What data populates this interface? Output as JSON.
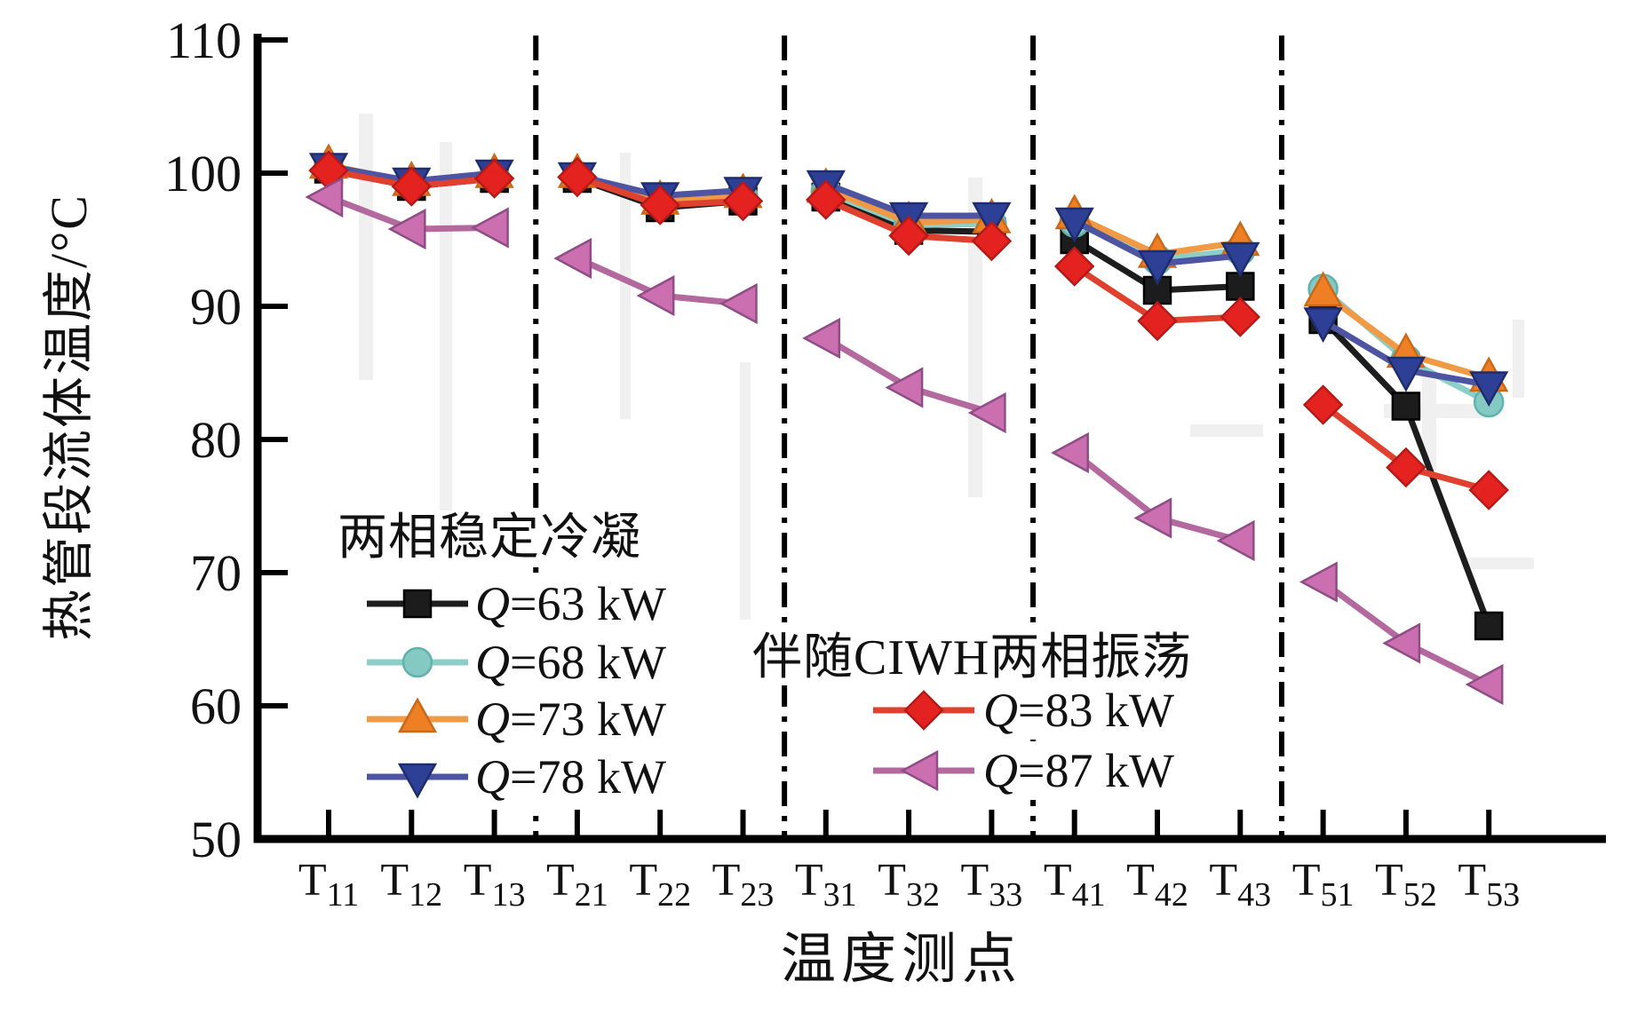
{
  "chart_data": {
    "type": "line",
    "title": "",
    "xlabel": "温度测点",
    "ylabel": "热管段流体温度/°C",
    "ylim": [
      50,
      110
    ],
    "yticks": [
      110,
      100,
      90,
      80,
      70,
      60,
      50
    ],
    "grid": false,
    "categories": [
      {
        "base": "T",
        "sub": "11"
      },
      {
        "base": "T",
        "sub": "12"
      },
      {
        "base": "T",
        "sub": "13"
      },
      {
        "base": "T",
        "sub": "21"
      },
      {
        "base": "T",
        "sub": "22"
      },
      {
        "base": "T",
        "sub": "23"
      },
      {
        "base": "T",
        "sub": "31"
      },
      {
        "base": "T",
        "sub": "32"
      },
      {
        "base": "T",
        "sub": "33"
      },
      {
        "base": "T",
        "sub": "41"
      },
      {
        "base": "T",
        "sub": "42"
      },
      {
        "base": "T",
        "sub": "43"
      },
      {
        "base": "T",
        "sub": "51"
      },
      {
        "base": "T",
        "sub": "52"
      },
      {
        "base": "T",
        "sub": "53"
      }
    ],
    "group_separators_after_index": [
      2,
      5,
      8,
      11
    ],
    "legend_groups": [
      {
        "title": "两相稳定冷凝",
        "series_indexes": [
          0,
          1,
          2,
          3
        ]
      },
      {
        "title": "伴随CIWH两相振荡",
        "series_indexes": [
          4,
          5
        ]
      }
    ],
    "series": [
      {
        "label": "Q=63 kW",
        "marker": "square",
        "color": "#1c1c1c",
        "line_color": "#1d1d1d",
        "edge_color": "#000000",
        "values": [
          100.3,
          99.0,
          99.6,
          99.6,
          97.4,
          97.9,
          98.2,
          95.7,
          95.6,
          95.0,
          91.2,
          91.5,
          89.0,
          82.5,
          66.0
        ]
      },
      {
        "label": "Q=68 kW",
        "marker": "circle",
        "color": "#85c9c3",
        "line_color": "#8ccfc9",
        "edge_color": "#5fb3ad",
        "values": [
          100.4,
          99.2,
          99.8,
          99.8,
          97.8,
          98.2,
          98.6,
          96.1,
          96.2,
          96.3,
          93.5,
          94.2,
          91.3,
          86.0,
          82.8
        ]
      },
      {
        "label": "Q=73 kW",
        "marker": "triangle-up",
        "color": "#ee7f25",
        "line_color": "#f09a45",
        "edge_color": "#c96a1a",
        "values": [
          100.6,
          99.3,
          99.9,
          99.9,
          97.9,
          98.4,
          98.8,
          96.3,
          96.5,
          96.8,
          93.9,
          94.8,
          91.0,
          86.4,
          84.6
        ]
      },
      {
        "label": "Q=78 kW",
        "marker": "triangle-down",
        "color": "#2e3f96",
        "line_color": "#4d55a3",
        "edge_color": "#1f2d6e",
        "values": [
          100.5,
          99.4,
          100.0,
          99.8,
          98.3,
          98.7,
          99.2,
          96.8,
          96.8,
          96.4,
          93.2,
          93.8,
          88.9,
          85.2,
          84.1
        ]
      },
      {
        "label": "Q=83 kW",
        "marker": "diamond",
        "color": "#e42320",
        "line_color": "#e0402e",
        "edge_color": "#b51a18",
        "values": [
          100.2,
          99.0,
          99.6,
          99.7,
          97.6,
          97.9,
          98.0,
          95.3,
          94.9,
          93.0,
          88.9,
          89.2,
          82.6,
          77.9,
          76.2
        ]
      },
      {
        "label": "Q=87 kW",
        "marker": "triangle-left",
        "color": "#cc6fb1",
        "line_color": "#b4699e",
        "edge_color": "#8f4d85",
        "values": [
          98.2,
          95.8,
          95.9,
          93.6,
          90.8,
          90.2,
          87.6,
          83.9,
          82.0,
          79.0,
          74.1,
          72.4,
          69.3,
          64.7,
          61.6
        ]
      }
    ]
  }
}
